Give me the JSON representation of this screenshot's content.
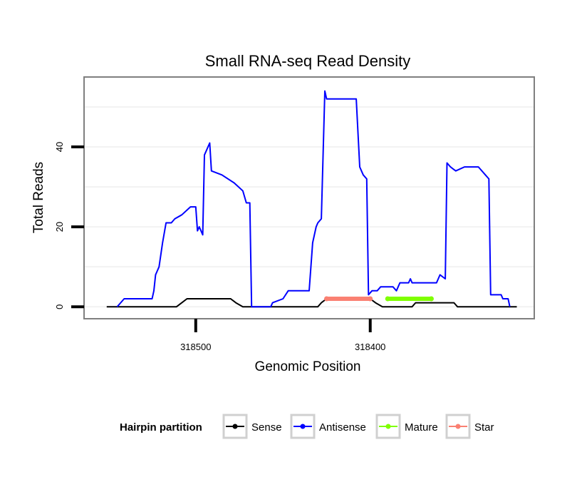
{
  "chart_data": {
    "type": "line",
    "title": "Small RNA-seq Read Density",
    "xlabel": "Genomic Position",
    "ylabel": "Total Reads",
    "x_reversed": true,
    "xlim": [
      318564,
      318306
    ],
    "ylim": [
      -3,
      57.5
    ],
    "x_ticks": [
      318500,
      318400
    ],
    "x_tick_labels": [
      "318500",
      "318400"
    ],
    "y_ticks": [
      0,
      20,
      40
    ],
    "y_tick_labels": [
      "0",
      "20",
      "40"
    ],
    "grid": true,
    "legend": {
      "title": "Hairpin partition",
      "position": "bottom",
      "entries": [
        {
          "label": "Sense",
          "color": "#000000"
        },
        {
          "label": "Antisense",
          "color": "#0000ff"
        },
        {
          "label": "Mature",
          "color": "#7fff00"
        },
        {
          "label": "Star",
          "color": "#fa8072"
        }
      ]
    },
    "series": [
      {
        "name": "Sense",
        "color": "#000000",
        "points": [
          [
            318551,
            0
          ],
          [
            318511,
            0
          ],
          [
            318508,
            1
          ],
          [
            318505,
            2
          ],
          [
            318480,
            2
          ],
          [
            318477,
            1
          ],
          [
            318473,
            0
          ],
          [
            318430,
            0
          ],
          [
            318428,
            1
          ],
          [
            318425,
            2
          ],
          [
            318400,
            2
          ],
          [
            318397,
            1
          ],
          [
            318393,
            0
          ],
          [
            318376,
            0
          ],
          [
            318374,
            1
          ],
          [
            318352,
            1
          ],
          [
            318350,
            0
          ],
          [
            318316,
            0
          ]
        ]
      },
      {
        "name": "Antisense",
        "color": "#0000ff",
        "points": [
          [
            318545,
            0
          ],
          [
            318543,
            1
          ],
          [
            318541,
            2
          ],
          [
            318525,
            2
          ],
          [
            318524,
            4
          ],
          [
            318523,
            8
          ],
          [
            318521,
            10
          ],
          [
            318519,
            16
          ],
          [
            318517,
            21
          ],
          [
            318514,
            21
          ],
          [
            318512,
            22
          ],
          [
            318508,
            23
          ],
          [
            318503,
            25
          ],
          [
            318500,
            25
          ],
          [
            318499,
            19
          ],
          [
            318498,
            20
          ],
          [
            318496,
            18
          ],
          [
            318495,
            38
          ],
          [
            318494,
            39
          ],
          [
            318492,
            41
          ],
          [
            318491,
            34
          ],
          [
            318485,
            33
          ],
          [
            318478,
            31
          ],
          [
            318473,
            29
          ],
          [
            318471,
            26
          ],
          [
            318469,
            26
          ],
          [
            318468,
            0
          ],
          [
            318457,
            0
          ],
          [
            318456,
            1
          ],
          [
            318450,
            2
          ],
          [
            318447,
            4
          ],
          [
            318435,
            4
          ],
          [
            318433,
            16
          ],
          [
            318431,
            20
          ],
          [
            318430,
            21
          ],
          [
            318428,
            22
          ],
          [
            318426,
            54
          ],
          [
            318425,
            52
          ],
          [
            318408,
            52
          ],
          [
            318406,
            35
          ],
          [
            318404,
            33
          ],
          [
            318402,
            32
          ],
          [
            318401,
            3
          ],
          [
            318399,
            4
          ],
          [
            318396,
            4
          ],
          [
            318394,
            5
          ],
          [
            318387,
            5
          ],
          [
            318385,
            4
          ],
          [
            318383,
            6
          ],
          [
            318378,
            6
          ],
          [
            318377,
            7
          ],
          [
            318376,
            6
          ],
          [
            318362,
            6
          ],
          [
            318360,
            8
          ],
          [
            318357,
            7
          ],
          [
            318356,
            36
          ],
          [
            318354,
            35
          ],
          [
            318351,
            34
          ],
          [
            318346,
            35
          ],
          [
            318338,
            35
          ],
          [
            318334,
            33
          ],
          [
            318332,
            32
          ],
          [
            318331,
            3
          ],
          [
            318325,
            3
          ],
          [
            318324,
            2
          ],
          [
            318321,
            2
          ],
          [
            318320,
            0
          ]
        ]
      },
      {
        "name": "Mature",
        "color": "#7fff00",
        "points": [
          [
            318390,
            2
          ],
          [
            318365,
            2
          ]
        ]
      },
      {
        "name": "Star",
        "color": "#fa8072",
        "points": [
          [
            318425,
            2
          ],
          [
            318400,
            2
          ]
        ]
      }
    ]
  }
}
